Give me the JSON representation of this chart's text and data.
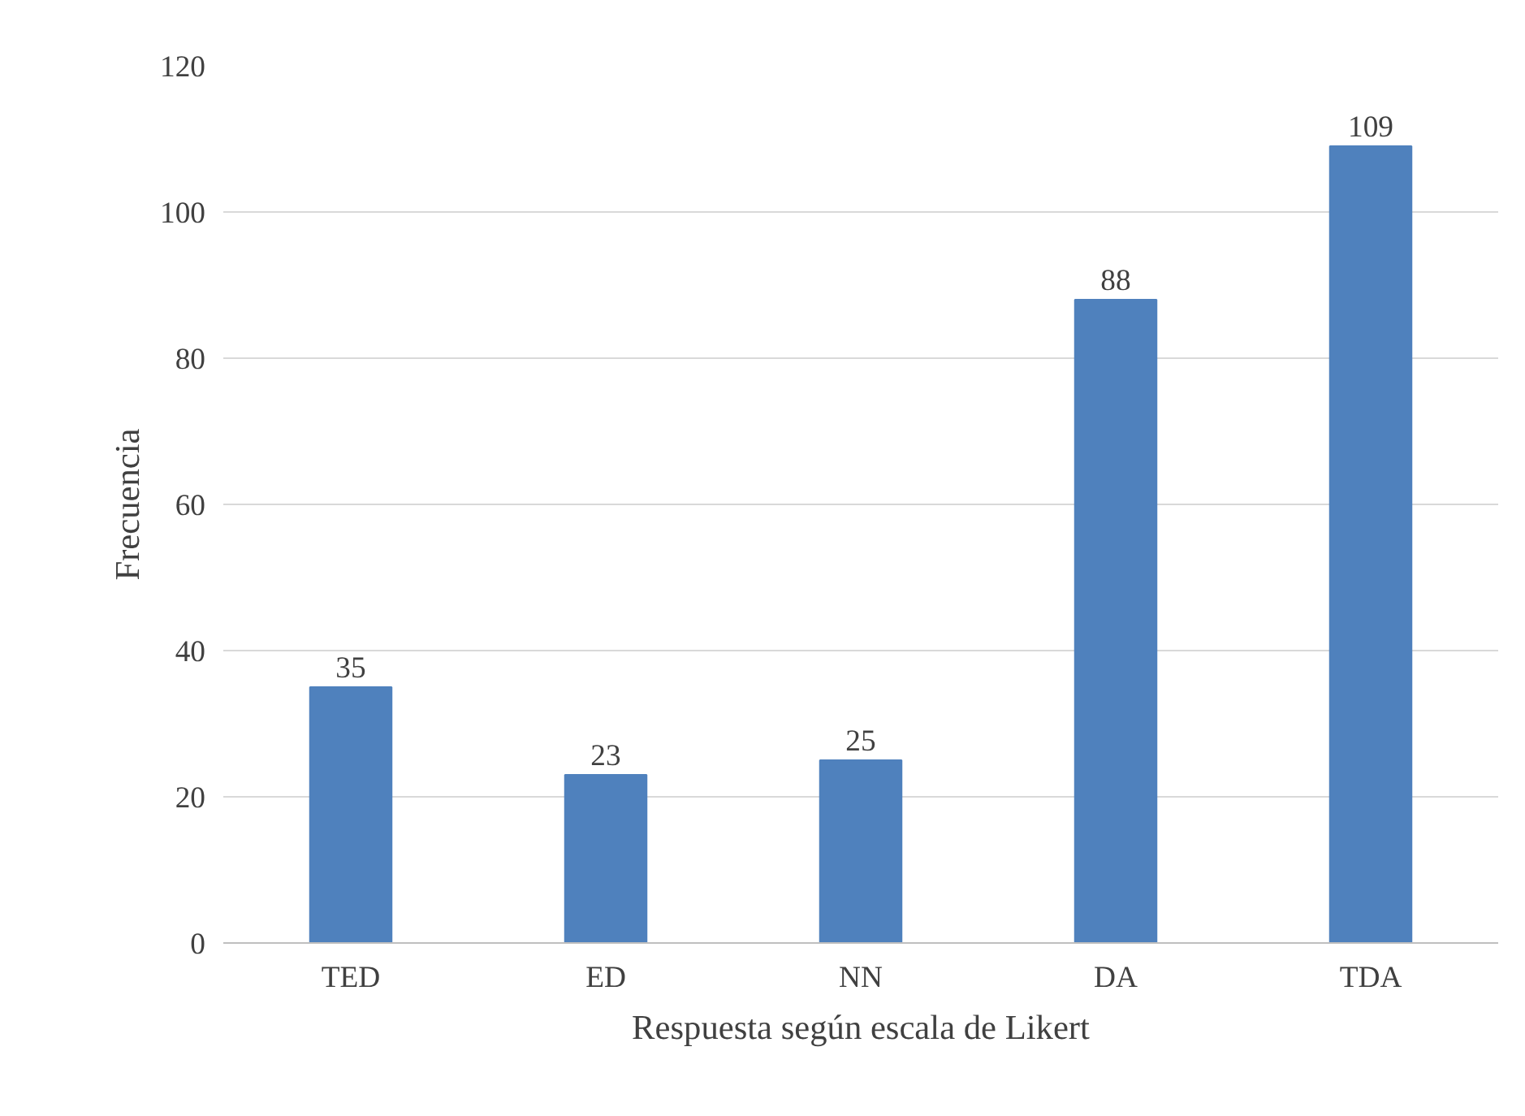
{
  "chart_data": {
    "type": "bar",
    "xlabel": "Respuesta según escala de Likert",
    "ylabel": "Frecuencia",
    "categories": [
      "TED",
      "ED",
      "NN",
      "DA",
      "TDA"
    ],
    "values": [
      35,
      23,
      25,
      88,
      109
    ],
    "color": "#4f81bd",
    "ylim": [
      0,
      120
    ],
    "yticks": [
      0,
      20,
      40,
      60,
      80,
      100,
      120
    ],
    "grid": "y",
    "data_labels": true
  }
}
